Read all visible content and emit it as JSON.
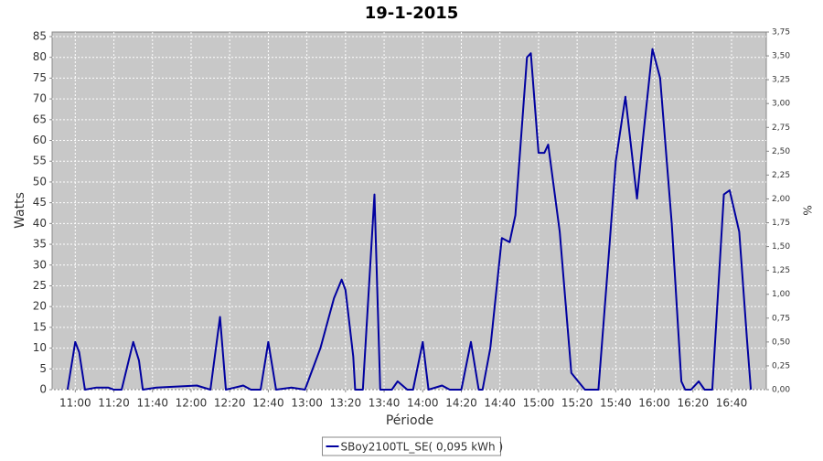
{
  "chart_data": {
    "type": "line",
    "title": "19-1-2015",
    "x_label": "Période",
    "y_label": "Watts",
    "y2_label": "%",
    "x": [
      "10:56",
      "11:00",
      "11:02",
      "11:05",
      "11:11",
      "11:17",
      "11:20",
      "11:24",
      "11:30",
      "11:33",
      "11:35",
      "11:42",
      "12:03",
      "12:10",
      "12:15",
      "12:18",
      "12:27",
      "12:31",
      "12:36",
      "12:40",
      "12:44",
      "12:52",
      "12:59",
      "13:07",
      "13:14",
      "13:18",
      "13:20",
      "13:24",
      "13:25",
      "13:29",
      "13:35",
      "13:38",
      "13:44",
      "13:47",
      "13:52",
      "13:55",
      "14:00",
      "14:03",
      "14:10",
      "14:14",
      "14:20",
      "14:25",
      "14:29",
      "14:31",
      "14:35",
      "14:41",
      "14:45",
      "14:48",
      "14:54",
      "14:56",
      "15:00",
      "15:03",
      "15:05",
      "15:11",
      "15:17",
      "15:24",
      "15:31",
      "15:36",
      "15:40",
      "15:45",
      "15:51",
      "15:54",
      "15:59",
      "16:03",
      "16:09",
      "16:14",
      "16:16",
      "16:19",
      "16:23",
      "16:26",
      "16:30",
      "16:36",
      "16:39",
      "16:44",
      "16:48",
      "16:50"
    ],
    "series": [
      {
        "name": "SBoy2100TL_SE( 0,095 kWh )",
        "color": "#0000a0",
        "values": [
          0,
          11.5,
          9,
          0,
          0.5,
          0.5,
          0,
          0,
          11.5,
          7,
          0,
          0.5,
          1,
          0,
          17.5,
          0,
          1,
          0,
          0,
          11.5,
          0,
          0.5,
          0,
          10,
          22,
          26.5,
          24,
          8,
          0,
          0,
          47,
          0,
          0,
          2,
          0,
          0,
          11.5,
          0,
          1,
          0,
          0,
          11.5,
          0,
          0,
          10,
          36.5,
          35.5,
          42,
          80,
          81,
          57,
          57,
          59,
          38,
          4,
          0,
          0,
          30,
          55,
          70.5,
          46,
          60,
          82,
          75,
          40,
          2,
          0,
          0,
          2,
          0,
          0,
          47,
          48,
          38,
          12,
          0
        ]
      }
    ],
    "xlim": [
      "10:48",
      "16:58"
    ],
    "xticks": [
      "11:00",
      "11:20",
      "11:40",
      "12:00",
      "12:20",
      "12:40",
      "13:00",
      "13:20",
      "13:40",
      "14:00",
      "14:20",
      "14:40",
      "15:00",
      "15:20",
      "15:40",
      "16:00",
      "16:20",
      "16:40"
    ],
    "ylim": [
      0,
      86.1
    ],
    "yticks": [
      0,
      5,
      10,
      15,
      20,
      25,
      30,
      35,
      40,
      45,
      50,
      55,
      60,
      65,
      70,
      75,
      80,
      85
    ],
    "y2lim": [
      0,
      3.75
    ],
    "y2ticks": [
      {
        "value": 0,
        "label": "0,00"
      },
      {
        "value": 0.25,
        "label": "0,25"
      },
      {
        "value": 0.5,
        "label": "0,50"
      },
      {
        "value": 0.75,
        "label": "0,75"
      },
      {
        "value": 1,
        "label": "1,00"
      },
      {
        "value": 1.25,
        "label": "1,25"
      },
      {
        "value": 1.5,
        "label": "1,50"
      },
      {
        "value": 1.75,
        "label": "1,75"
      },
      {
        "value": 2,
        "label": "2,00"
      },
      {
        "value": 2.25,
        "label": "2,25"
      },
      {
        "value": 2.5,
        "label": "2,50"
      },
      {
        "value": 2.75,
        "label": "2,75"
      },
      {
        "value": 3,
        "label": "3,00"
      },
      {
        "value": 3.25,
        "label": "3,25"
      },
      {
        "value": 3.5,
        "label": "3,50"
      },
      {
        "value": 3.75,
        "label": "3,75"
      }
    ],
    "grid": true,
    "legend": "bottom"
  }
}
